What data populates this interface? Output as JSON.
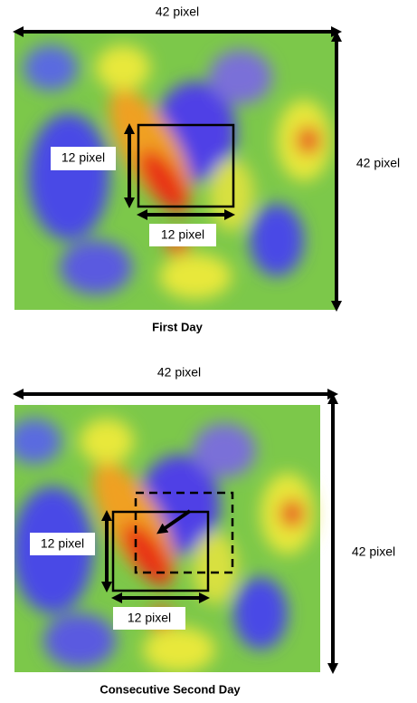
{
  "panels": [
    {
      "width_label": "42 pixel",
      "height_label": "42 pixel",
      "box_height_label": "12 pixel",
      "box_width_label": "12 pixel",
      "caption": "First Day"
    },
    {
      "width_label": "42 pixel",
      "height_label": "42 pixel",
      "box_height_label": "12 pixel",
      "box_width_label": "12 pixel",
      "caption": "Consecutive Second Day"
    }
  ]
}
